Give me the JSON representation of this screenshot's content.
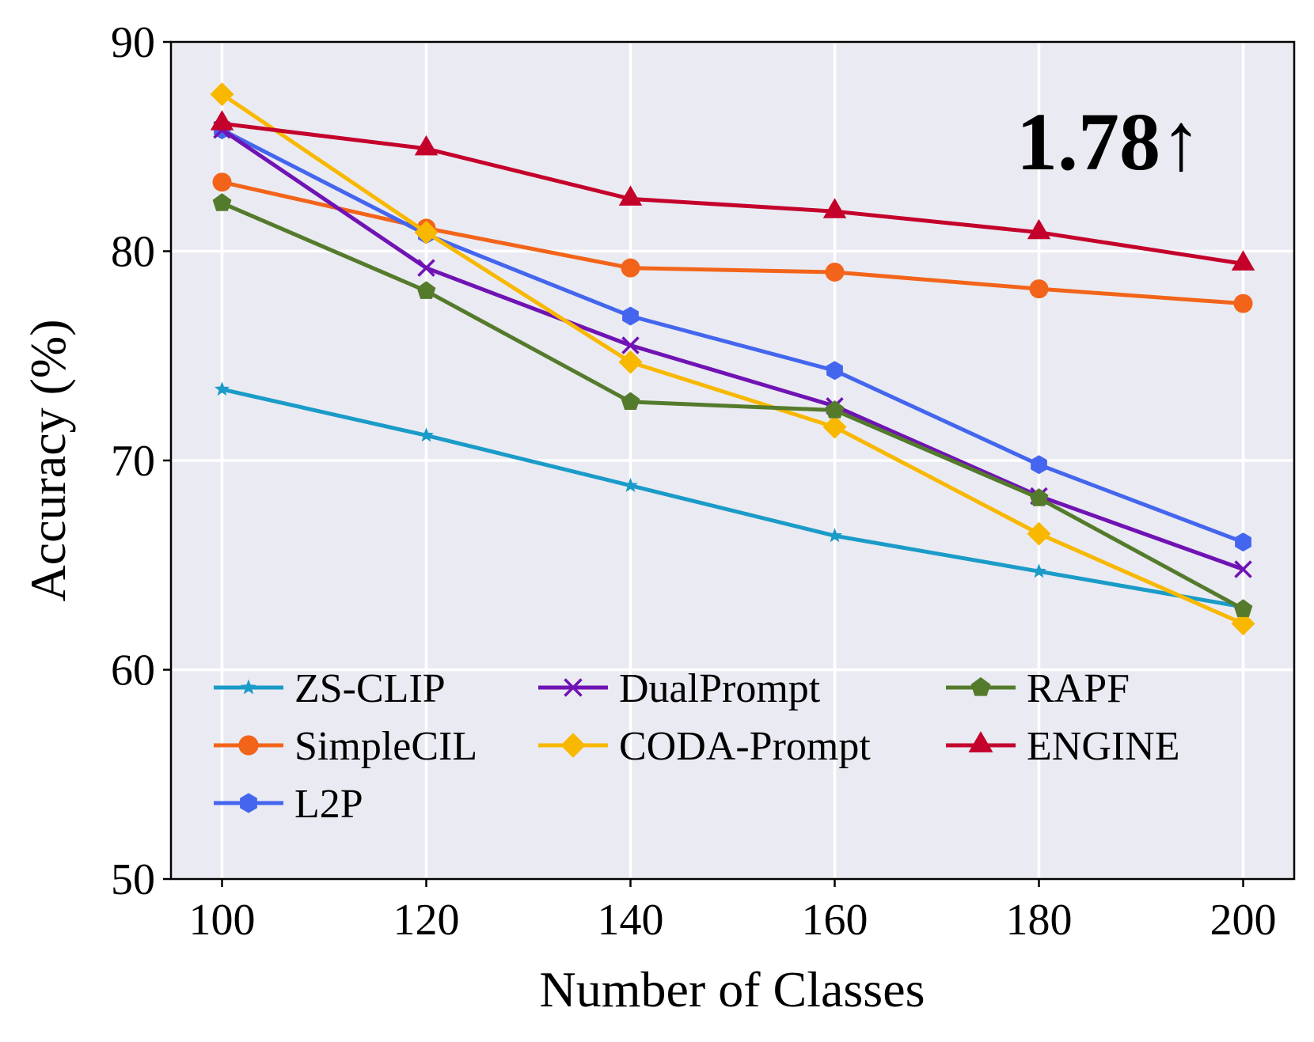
{
  "chart_data": {
    "type": "line",
    "title": "",
    "xlabel": "Number of Classes",
    "ylabel": "Accuracy (%)",
    "xlim": [
      95,
      205
    ],
    "ylim": [
      50,
      90
    ],
    "x": [
      100,
      120,
      140,
      160,
      180,
      200
    ],
    "xticks": [
      "100",
      "120",
      "140",
      "160",
      "180",
      "200"
    ],
    "yticks": [
      "50",
      "60",
      "70",
      "80",
      "90"
    ],
    "grid": true,
    "legend_position": "lower-left",
    "annotation": {
      "text": "1.78↑",
      "position": "top-right"
    },
    "series": [
      {
        "name": "ZS-CLIP",
        "color": "#1a9bc8",
        "marker": "star",
        "values": [
          73.4,
          71.2,
          68.8,
          66.4,
          64.7,
          63.0
        ]
      },
      {
        "name": "SimpleCIL",
        "color": "#f26419",
        "marker": "circle",
        "values": [
          83.3,
          81.1,
          79.2,
          79.0,
          78.2,
          77.5
        ]
      },
      {
        "name": "L2P",
        "color": "#4466ee",
        "marker": "hexagon",
        "values": [
          85.8,
          80.8,
          76.9,
          74.3,
          69.8,
          66.1
        ]
      },
      {
        "name": "DualPrompt",
        "color": "#7013b4",
        "marker": "x",
        "values": [
          85.8,
          79.2,
          75.5,
          72.6,
          68.3,
          64.8
        ]
      },
      {
        "name": "CODA-Prompt",
        "color": "#f8b800",
        "marker": "diamond",
        "values": [
          87.5,
          80.9,
          74.7,
          71.6,
          66.5,
          62.2
        ]
      },
      {
        "name": "RAPF",
        "color": "#547b2c",
        "marker": "pentagon",
        "values": [
          82.3,
          78.1,
          72.8,
          72.4,
          68.2,
          62.9
        ]
      },
      {
        "name": "ENGINE",
        "color": "#c4012b",
        "marker": "triangle",
        "values": [
          86.1,
          84.9,
          82.5,
          81.9,
          80.9,
          79.4
        ]
      }
    ]
  }
}
